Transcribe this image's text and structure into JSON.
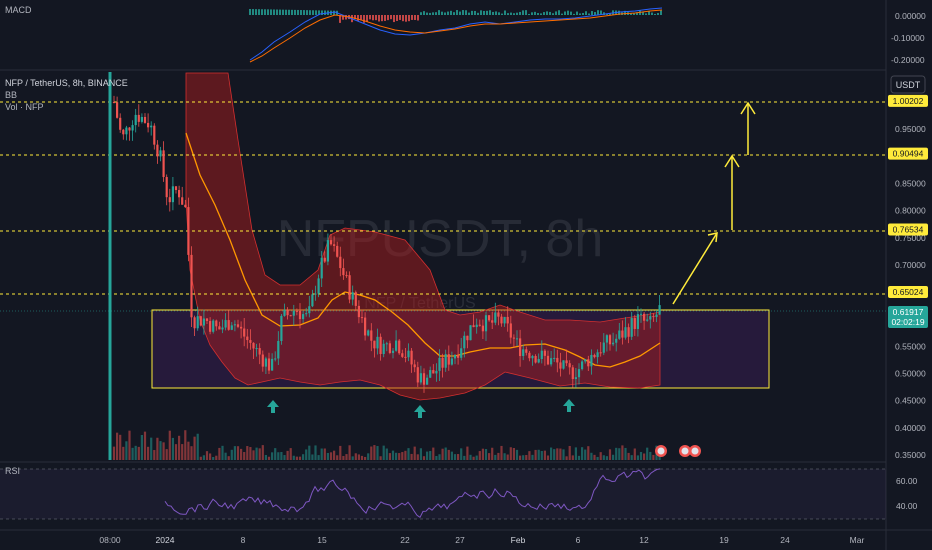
{
  "symbol": {
    "line": "NFP / TetherUS, 8h, BINANCE",
    "indicators": [
      "BB",
      "Vol · NFP"
    ],
    "watermark": "NFPUSDT, 8h",
    "watermark_sub": "NFP / TetherUS"
  },
  "macd_panel": {
    "label": "MACD",
    "ticks": [
      "0.00000",
      "-0.10000",
      "-0.20000"
    ]
  },
  "rsi_panel": {
    "label": "RSI",
    "ticks": [
      "60.00",
      "40.00"
    ]
  },
  "currency": "USDT",
  "colors": {
    "up": "#26a69a",
    "down": "#ef5350",
    "bb_fill": "#b71c1c",
    "basis": "#ff9800",
    "highlight": "#ffeb3b",
    "box_fill": "#2a1b40",
    "rsi": "#7e57c2"
  },
  "price_axis": [
    "1.00000",
    "0.95000",
    "0.90000",
    "0.85000",
    "0.80000",
    "0.75000",
    "0.70000",
    "0.65000",
    "0.60000",
    "0.55000",
    "0.50000",
    "0.45000",
    "0.40000",
    "0.35000"
  ],
  "time_axis": [
    "08:00",
    "2024",
    "8",
    "15",
    "22",
    "27",
    "Feb",
    "6",
    "12",
    "19",
    "24",
    "Mar"
  ],
  "levels": [
    "1.00202",
    "0.90494",
    "0.76534",
    "0.65024"
  ],
  "last_price": {
    "price": "0.61917",
    "countdown": "02:02:19"
  },
  "chart_data": {
    "type": "candlestick",
    "title": "NFPUSDT, 8h",
    "subtitle": "NFP / TetherUS",
    "ylim": [
      0.35,
      1.05
    ],
    "x": [
      "08:00",
      "2024",
      "8",
      "15",
      "22",
      "27",
      "Feb",
      "6",
      "12"
    ],
    "horizontal_levels": [
      1.00202,
      0.90494,
      0.76534,
      0.65024
    ],
    "last_price": 0.61917,
    "range_box": {
      "low": 0.475,
      "high": 0.62
    },
    "support_arrows": 3,
    "projection_arrows": 3,
    "bollinger_basis_approx": [
      0.95,
      0.82,
      0.68,
      0.6,
      0.57,
      0.58,
      0.6,
      0.63,
      0.64,
      0.62,
      0.58,
      0.54,
      0.52,
      0.55,
      0.56,
      0.54,
      0.53,
      0.51,
      0.52,
      0.55,
      0.58
    ],
    "close_approx": [
      1.0,
      0.88,
      0.84,
      0.58,
      0.6,
      0.55,
      0.5,
      0.58,
      0.62,
      0.73,
      0.65,
      0.58,
      0.53,
      0.49,
      0.48,
      0.55,
      0.6,
      0.54,
      0.52,
      0.5,
      0.55,
      0.58,
      0.61917
    ]
  }
}
